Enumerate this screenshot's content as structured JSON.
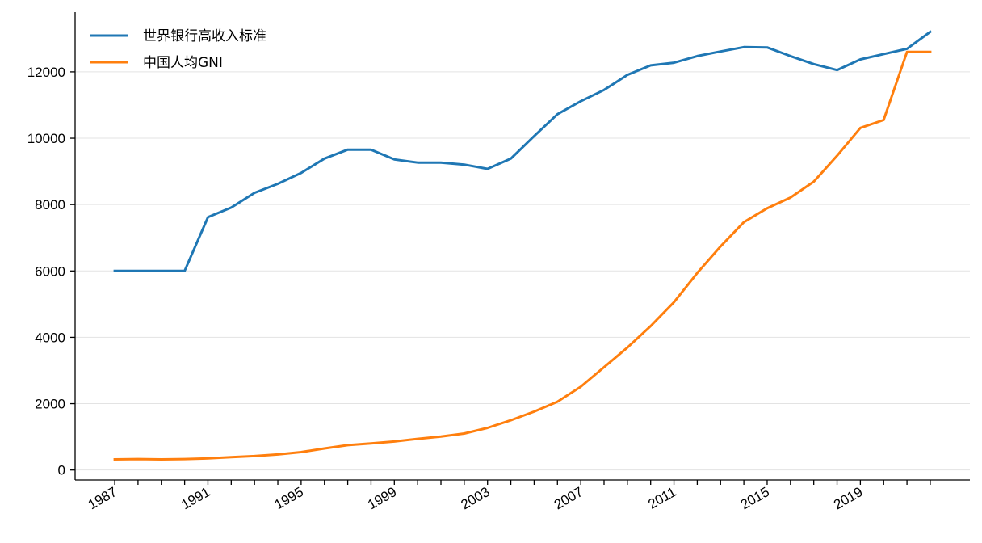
{
  "chart_data": {
    "type": "line",
    "title": "",
    "xlabel": "",
    "ylabel": "",
    "x": [
      1987,
      1988,
      1989,
      1990,
      1991,
      1992,
      1993,
      1994,
      1995,
      1996,
      1997,
      1998,
      1999,
      2000,
      2001,
      2002,
      2003,
      2004,
      2005,
      2006,
      2007,
      2008,
      2009,
      2010,
      2011,
      2012,
      2013,
      2014,
      2015,
      2016,
      2017,
      2018,
      2019,
      2020,
      2021,
      2022
    ],
    "x_tick_labels": [
      "1987",
      "1991",
      "1995",
      "1999",
      "2003",
      "2007",
      "2011",
      "2015",
      "2019"
    ],
    "y_tick_labels": [
      "0",
      "2000",
      "4000",
      "6000",
      "8000",
      "10000",
      "12000"
    ],
    "ylim": [
      -300,
      13800
    ],
    "xlim": [
      1985.3,
      2023.7
    ],
    "grid": "horizontal",
    "legend": "top-left",
    "series": [
      {
        "name": "世界银行高收入标准",
        "color": "#1f77b4",
        "values": [
          6000,
          6000,
          6000,
          6000,
          7620,
          7910,
          8355,
          8625,
          8955,
          9385,
          9655,
          9655,
          9360,
          9265,
          9265,
          9205,
          9075,
          9385,
          10065,
          10725,
          11115,
          11455,
          11905,
          12195,
          12275,
          12475,
          12615,
          12745,
          12735,
          12475,
          12235,
          12055,
          12375,
          12535,
          12695,
          13205
        ]
      },
      {
        "name": "中国人均GNI",
        "color": "#ff7f0e",
        "values": [
          320,
          330,
          320,
          330,
          350,
          390,
          420,
          470,
          540,
          650,
          750,
          800,
          860,
          940,
          1010,
          1100,
          1270,
          1500,
          1760,
          2060,
          2510,
          3100,
          3690,
          4340,
          5060,
          5940,
          6740,
          7470,
          7890,
          8210,
          8690,
          9470,
          10310,
          10550,
          12600,
          12600
        ]
      }
    ]
  }
}
